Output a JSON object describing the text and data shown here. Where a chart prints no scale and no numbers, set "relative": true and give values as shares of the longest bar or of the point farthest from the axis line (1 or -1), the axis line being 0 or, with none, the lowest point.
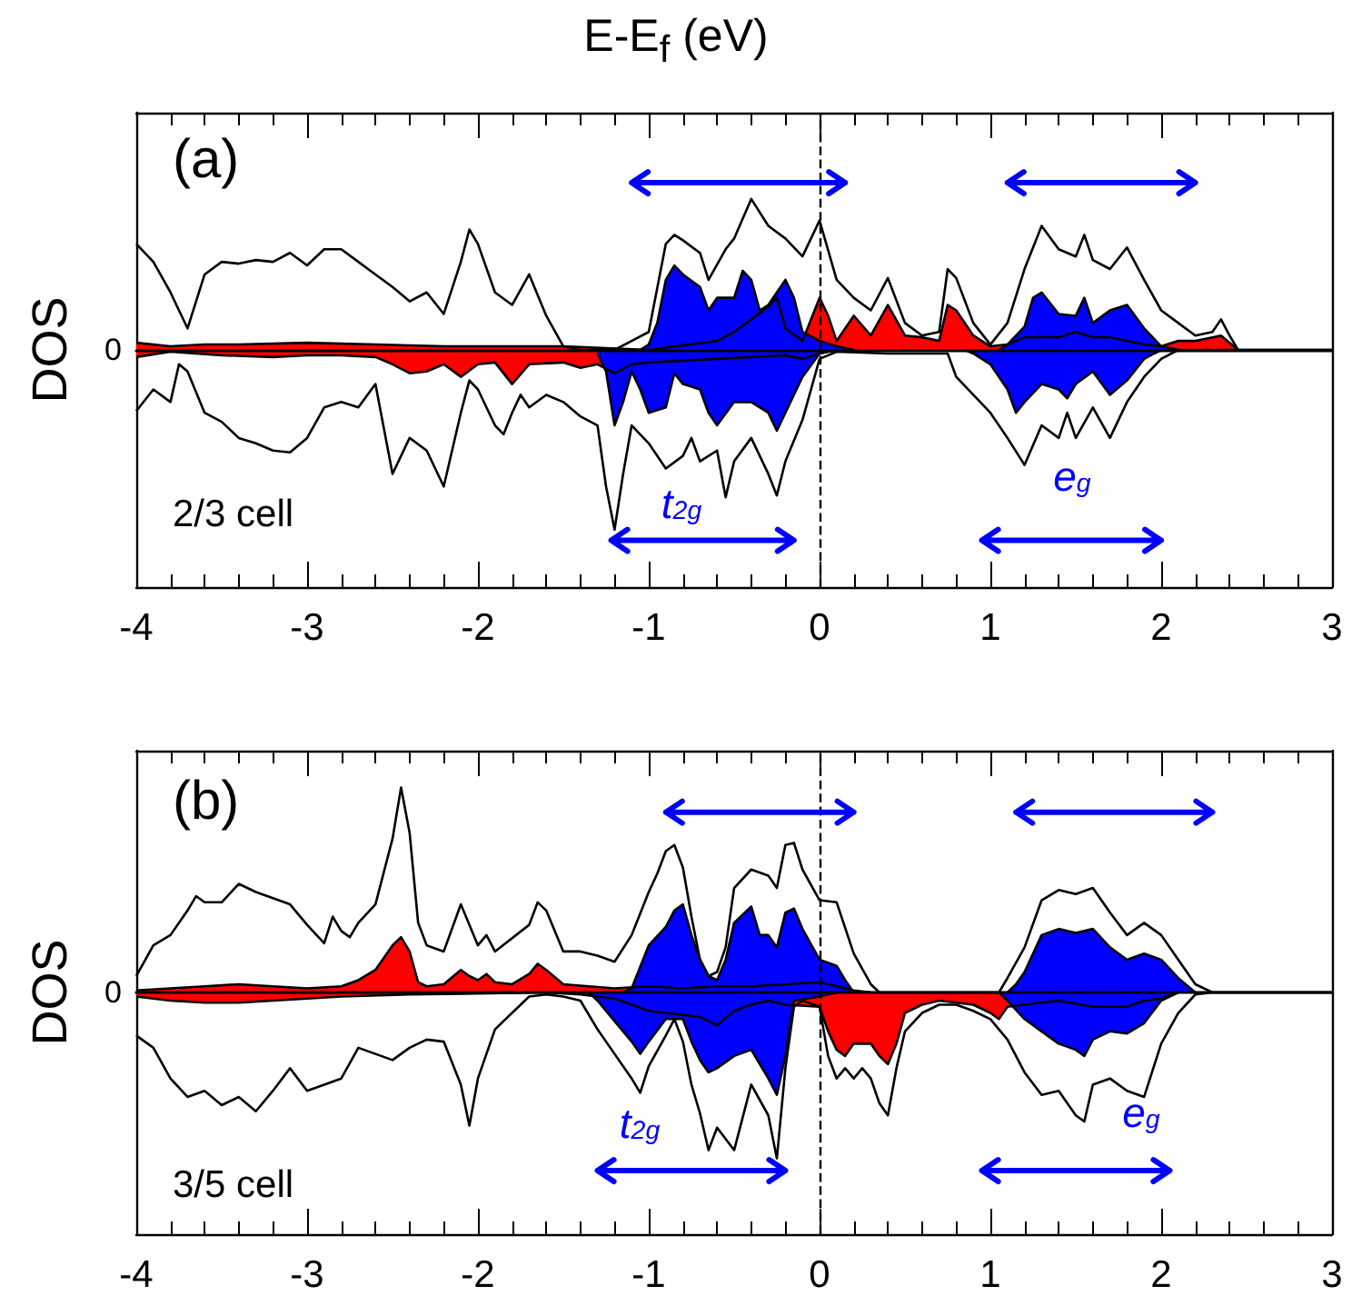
{
  "chart_data": [
    {
      "type": "line",
      "title": "E-E$_{f}$ (eV)",
      "ylabel": "DOS",
      "relative": true,
      "xlim": [
        -4,
        3
      ],
      "xticks": [
        -4,
        -3,
        -2,
        -1,
        0,
        1,
        2,
        3
      ],
      "ref_lines": [
        {
          "axis": "x",
          "value": 0,
          "line_style": "dashed",
          "color": "#000000"
        }
      ],
      "annotations": [
        "(a)",
        "2/3 cell",
        {
          "text": "0",
          "x": -4,
          "y": 0
        },
        "t$_{2g}$",
        "e$_{g}$"
      ],
      "series": [
        {
          "type": "line",
          "color": "#000000",
          "x": [
            -4,
            -3.9,
            -3.8,
            -3.7,
            -3.6,
            -3.5,
            -3.4,
            -3.3,
            -3.2,
            -3.1,
            -3.0,
            -2.9,
            -2.8,
            -2.7,
            -2.6,
            -2.5,
            -2.4,
            -2.3,
            -2.2,
            -2.1,
            -2.05,
            -2.0,
            -1.9,
            -1.8,
            -1.7,
            -1.6,
            -1.5,
            -1.4,
            -1.3,
            -1.2,
            -1.1,
            -1.0,
            -0.9,
            -0.85,
            -0.8,
            -0.7,
            -0.65,
            -0.55,
            -0.5,
            -0.4,
            -0.3,
            -0.2,
            -0.1,
            0,
            0.1,
            0.2,
            0.3,
            0.4,
            0.5,
            0.6,
            0.7,
            0.75,
            0.8,
            0.9,
            1.0,
            1.1,
            1.2,
            1.3,
            1.4,
            1.5,
            1.55,
            1.6,
            1.7,
            1.8,
            1.9,
            2.0,
            2.1,
            2.2,
            2.3,
            2.35,
            2.4,
            2.45,
            3
          ],
          "values": [
            0.59,
            0.49,
            0.32,
            0.12,
            0.42,
            0.49,
            0.48,
            0.5,
            0.49,
            0.54,
            0.47,
            0.56,
            0.56,
            0.49,
            0.42,
            0.35,
            0.27,
            0.32,
            0.2,
            0.49,
            0.67,
            0.59,
            0.32,
            0.25,
            0.42,
            0.19,
            0.02,
            0,
            0,
            0,
            0.05,
            0.1,
            0.59,
            0.64,
            0.61,
            0.54,
            0.39,
            0.56,
            0.62,
            0.84,
            0.69,
            0.62,
            0.52,
            0.72,
            0.39,
            0.29,
            0.22,
            0.4,
            0.15,
            0.08,
            0.1,
            0.45,
            0.4,
            0.15,
            0.03,
            0.15,
            0.45,
            0.69,
            0.56,
            0.52,
            0.64,
            0.5,
            0.45,
            0.57,
            0.39,
            0.22,
            0.15,
            0.08,
            0.1,
            0.17,
            0.08,
            0,
            0
          ]
        },
        {
          "type": "line",
          "color": "#000000",
          "x": [
            -4,
            -3.9,
            -3.8,
            -3.75,
            -3.7,
            -3.6,
            -3.5,
            -3.4,
            -3.3,
            -3.2,
            -3.1,
            -3.0,
            -2.9,
            -2.8,
            -2.7,
            -2.6,
            -2.5,
            -2.4,
            -2.3,
            -2.2,
            -2.1,
            -2.05,
            -2.0,
            -1.9,
            -1.85,
            -1.8,
            -1.75,
            -1.7,
            -1.6,
            -1.5,
            -1.4,
            -1.3,
            -1.25,
            -1.2,
            -1.15,
            -1.1,
            -1.0,
            -0.9,
            -0.8,
            -0.75,
            -0.7,
            -0.6,
            -0.55,
            -0.5,
            -0.4,
            -0.3,
            -0.25,
            -0.2,
            -0.1,
            0,
            0.1,
            0.4,
            0.7,
            0.75,
            0.8,
            0.9,
            1.0,
            1.1,
            1.2,
            1.3,
            1.4,
            1.45,
            1.5,
            1.6,
            1.7,
            1.8,
            1.9,
            2.0,
            2.1,
            3
          ],
          "values": [
            -0.34,
            -0.22,
            -0.29,
            -0.08,
            -0.12,
            -0.35,
            -0.4,
            -0.49,
            -0.52,
            -0.56,
            -0.57,
            -0.49,
            -0.32,
            -0.29,
            -0.32,
            -0.19,
            -0.69,
            -0.49,
            -0.56,
            -0.76,
            -0.35,
            -0.17,
            -0.22,
            -0.42,
            -0.47,
            -0.35,
            -0.25,
            -0.32,
            -0.25,
            -0.29,
            -0.37,
            -0.42,
            -0.76,
            -1.0,
            -0.69,
            -0.42,
            -0.52,
            -0.66,
            -0.59,
            -0.49,
            -0.62,
            -0.56,
            -0.82,
            -0.62,
            -0.49,
            -0.69,
            -0.81,
            -0.62,
            -0.39,
            -0.05,
            -0.01,
            -0.02,
            -0.02,
            -0.02,
            -0.15,
            -0.25,
            -0.35,
            -0.49,
            -0.64,
            -0.42,
            -0.49,
            -0.35,
            -0.49,
            -0.32,
            -0.49,
            -0.29,
            -0.15,
            -0.05,
            0,
            0
          ]
        },
        {
          "type": "area",
          "color": "#0000ff",
          "x": [
            -1.05,
            -1.0,
            -0.95,
            -0.9,
            -0.85,
            -0.8,
            -0.7,
            -0.65,
            -0.6,
            -0.5,
            -0.45,
            -0.4,
            -0.35,
            -0.3,
            -0.2,
            -0.15,
            -0.1,
            0,
            0.1,
            0.2
          ],
          "values": [
            0,
            0.03,
            0.15,
            0.39,
            0.47,
            0.42,
            0.35,
            0.22,
            0.29,
            0.29,
            0.44,
            0.39,
            0.22,
            0.25,
            0.39,
            0.29,
            0.1,
            0.05,
            0.02,
            0
          ]
        },
        {
          "type": "area",
          "color": "#0000ff",
          "x": [
            1.05,
            1.1,
            1.2,
            1.25,
            1.3,
            1.4,
            1.5,
            1.55,
            1.6,
            1.7,
            1.8,
            1.9,
            2.0,
            2.1
          ],
          "values": [
            0,
            0.03,
            0.13,
            0.29,
            0.32,
            0.2,
            0.19,
            0.29,
            0.15,
            0.22,
            0.25,
            0.12,
            0.02,
            0
          ]
        },
        {
          "type": "area",
          "color": "#0000ff",
          "x": [
            -1.3,
            -1.25,
            -1.2,
            -1.15,
            -1.1,
            -1.05,
            -1.0,
            -0.9,
            -0.85,
            -0.8,
            -0.7,
            -0.65,
            -0.6,
            -0.5,
            -0.4,
            -0.3,
            -0.25,
            -0.2,
            -0.1,
            0,
            0.1
          ],
          "values": [
            -0.02,
            -0.12,
            -0.42,
            -0.29,
            -0.12,
            -0.22,
            -0.35,
            -0.32,
            -0.13,
            -0.19,
            -0.22,
            -0.35,
            -0.42,
            -0.29,
            -0.29,
            -0.35,
            -0.45,
            -0.35,
            -0.15,
            -0.02,
            0
          ]
        },
        {
          "type": "area",
          "color": "#0000ff",
          "x": [
            0.85,
            0.9,
            1.0,
            1.1,
            1.15,
            1.2,
            1.3,
            1.4,
            1.45,
            1.5,
            1.6,
            1.7,
            1.8,
            1.9,
            2.0
          ],
          "values": [
            0,
            -0.02,
            -0.08,
            -0.22,
            -0.35,
            -0.29,
            -0.19,
            -0.22,
            -0.27,
            -0.19,
            -0.12,
            -0.25,
            -0.17,
            -0.05,
            0
          ]
        },
        {
          "type": "area",
          "color": "#ff0000",
          "x": [
            -4,
            -3.8,
            -3.5,
            -3.2,
            -3.0,
            -2.8,
            -2.6,
            -2.5,
            -2.4,
            -2.3,
            -2.2,
            -2.1,
            -2.0,
            -1.9,
            -1.8,
            -1.7,
            -1.5,
            -1.4,
            -1.3,
            -1.2,
            -1.1,
            -1.0,
            -0.8,
            -0.6,
            -0.4,
            -0.2,
            -0.1,
            0,
            0.1
          ],
          "values": [
            -0.04,
            -0.01,
            -0.03,
            -0.04,
            -0.03,
            -0.03,
            -0.04,
            -0.08,
            -0.13,
            -0.12,
            -0.08,
            -0.15,
            -0.08,
            -0.07,
            -0.19,
            -0.08,
            -0.07,
            -0.1,
            -0.08,
            -0.13,
            -0.08,
            -0.07,
            -0.06,
            -0.05,
            -0.04,
            -0.03,
            -0.05,
            -0.02,
            0
          ]
        },
        {
          "type": "area",
          "color": "#ff0000",
          "x": [
            -4,
            -3.8,
            -3.6,
            -3.4,
            -3.0,
            -2.6,
            -2.2,
            -1.8,
            -1.5,
            -1.0,
            -0.6,
            -0.5,
            -0.4,
            -0.3,
            -0.25,
            -0.2,
            -0.1,
            0,
            0.05,
            0.1,
            0.2,
            0.3,
            0.4,
            0.5,
            0.6,
            0.7,
            0.75,
            0.8,
            0.9,
            1.0,
            1.1,
            1.2,
            1.4,
            1.5,
            1.6,
            1.7,
            1.8,
            1.9,
            2.0,
            2.1,
            2.2,
            2.3,
            2.35,
            2.45
          ],
          "values": [
            0.04,
            0.02,
            0.03,
            0.03,
            0.04,
            0.03,
            0.02,
            0.02,
            0.02,
            0,
            0.05,
            0.1,
            0.17,
            0.24,
            0.29,
            0.12,
            0.05,
            0.29,
            0.19,
            0.05,
            0.19,
            0.08,
            0.25,
            0.08,
            0.07,
            0.05,
            0.25,
            0.22,
            0.08,
            0.02,
            0.03,
            0.07,
            0.07,
            0.1,
            0.07,
            0.07,
            0.05,
            0.03,
            0.02,
            0.05,
            0.05,
            0.07,
            0.08,
            0
          ]
        }
      ]
    },
    {
      "type": "line",
      "ylabel": "DOS",
      "relative": true,
      "xlim": [
        -4,
        3
      ],
      "xticks": [
        -4,
        -3,
        -2,
        -1,
        0,
        1,
        2,
        3
      ],
      "ref_lines": [
        {
          "axis": "x",
          "value": 0,
          "line_style": "dashed",
          "color": "#000000"
        }
      ],
      "annotations": [
        "(b)",
        "3/5 cell",
        {
          "text": "0",
          "x": -4,
          "y": 0
        },
        "t$_{2g}$",
        "e$_{g}$"
      ],
      "series": [
        {
          "type": "line",
          "color": "#000000",
          "x": [
            -4,
            -3.9,
            -3.8,
            -3.7,
            -3.65,
            -3.6,
            -3.5,
            -3.4,
            -3.3,
            -3.2,
            -3.1,
            -3.0,
            -2.9,
            -2.85,
            -2.8,
            -2.75,
            -2.7,
            -2.6,
            -2.5,
            -2.45,
            -2.4,
            -2.35,
            -2.3,
            -2.2,
            -2.1,
            -2.0,
            -1.95,
            -1.9,
            -1.7,
            -1.65,
            -1.6,
            -1.5,
            -1.4,
            -1.3,
            -1.2,
            -1.1,
            -1.0,
            -0.95,
            -0.9,
            -0.85,
            -0.8,
            -0.75,
            -0.7,
            -0.65,
            -0.6,
            -0.55,
            -0.5,
            -0.4,
            -0.3,
            -0.25,
            -0.2,
            -0.15,
            -0.1,
            0,
            0.1,
            0.2,
            0.3,
            0.35,
            1.05,
            1.1,
            1.2,
            1.3,
            1.4,
            1.5,
            1.6,
            1.7,
            1.8,
            1.9,
            2.0,
            2.1,
            2.2,
            2.3,
            3
          ],
          "values": [
            0.08,
            0.23,
            0.28,
            0.4,
            0.47,
            0.44,
            0.44,
            0.53,
            0.49,
            0.46,
            0.43,
            0.33,
            0.24,
            0.37,
            0.3,
            0.27,
            0.34,
            0.43,
            0.75,
            1.0,
            0.78,
            0.34,
            0.23,
            0.2,
            0.43,
            0.23,
            0.28,
            0.2,
            0.33,
            0.44,
            0.4,
            0.2,
            0.2,
            0.18,
            0.15,
            0.28,
            0.49,
            0.58,
            0.69,
            0.72,
            0.61,
            0.37,
            0.16,
            0.08,
            0.1,
            0.22,
            0.51,
            0.6,
            0.57,
            0.51,
            0.72,
            0.73,
            0.6,
            0.45,
            0.44,
            0.19,
            0.04,
            0,
            0,
            0.07,
            0.22,
            0.45,
            0.5,
            0.48,
            0.51,
            0.39,
            0.28,
            0.34,
            0.28,
            0.16,
            0.04,
            0,
            0
          ]
        },
        {
          "type": "line",
          "color": "#000000",
          "x": [
            -4,
            -3.9,
            -3.8,
            -3.7,
            -3.6,
            -3.5,
            -3.4,
            -3.3,
            -3.2,
            -3.1,
            -3.0,
            -2.9,
            -2.8,
            -2.7,
            -2.6,
            -2.5,
            -2.4,
            -2.3,
            -2.2,
            -2.1,
            -2.05,
            -2.0,
            -1.9,
            -1.8,
            -1.7,
            -1.6,
            -1.5,
            -1.4,
            -1.3,
            -1.2,
            -1.1,
            -1.05,
            -1.0,
            -0.9,
            -0.85,
            -0.8,
            -0.75,
            -0.7,
            -0.65,
            -0.6,
            -0.5,
            -0.4,
            -0.3,
            -0.25,
            -0.2,
            -0.15,
            -0.1,
            0,
            0.05,
            0.1,
            0.15,
            0.2,
            0.25,
            0.3,
            0.35,
            0.4,
            0.45,
            0.5,
            0.6,
            0.7,
            0.8,
            0.9,
            1.0,
            1.1,
            1.2,
            1.3,
            1.4,
            1.5,
            1.55,
            1.6,
            1.7,
            1.8,
            1.9,
            2.0,
            2.1,
            2.2,
            2.3,
            3
          ],
          "values": [
            -0.21,
            -0.27,
            -0.42,
            -0.51,
            -0.48,
            -0.55,
            -0.51,
            -0.58,
            -0.48,
            -0.37,
            -0.48,
            -0.45,
            -0.42,
            -0.27,
            -0.3,
            -0.33,
            -0.27,
            -0.23,
            -0.24,
            -0.45,
            -0.65,
            -0.42,
            -0.18,
            -0.1,
            -0.02,
            -0.01,
            -0.02,
            -0.04,
            -0.18,
            -0.3,
            -0.42,
            -0.49,
            -0.36,
            -0.21,
            -0.13,
            -0.24,
            -0.45,
            -0.59,
            -0.77,
            -0.66,
            -0.77,
            -0.45,
            -0.6,
            -0.81,
            -0.37,
            -0.07,
            -0.04,
            -0.07,
            -0.31,
            -0.42,
            -0.37,
            -0.42,
            -0.37,
            -0.42,
            -0.54,
            -0.6,
            -0.37,
            -0.19,
            -0.1,
            -0.06,
            -0.06,
            -0.09,
            -0.13,
            -0.23,
            -0.39,
            -0.5,
            -0.48,
            -0.6,
            -0.63,
            -0.45,
            -0.42,
            -0.48,
            -0.51,
            -0.25,
            -0.1,
            -0.01,
            0,
            0
          ]
        },
        {
          "type": "area",
          "color": "#0000ff",
          "x": [
            -1.15,
            -1.1,
            -1.0,
            -0.9,
            -0.85,
            -0.8,
            -0.75,
            -0.7,
            -0.65,
            -0.6,
            -0.55,
            -0.5,
            -0.4,
            -0.35,
            -0.3,
            -0.25,
            -0.2,
            -0.15,
            -0.1,
            0,
            0.1,
            0.15,
            0.2
          ],
          "values": [
            0,
            0.02,
            0.23,
            0.32,
            0.4,
            0.43,
            0.28,
            0.16,
            0.08,
            0.06,
            0.16,
            0.34,
            0.42,
            0.28,
            0.28,
            0.22,
            0.39,
            0.41,
            0.31,
            0.16,
            0.13,
            0.06,
            0
          ]
        },
        {
          "type": "area",
          "color": "#0000ff",
          "x": [
            1.1,
            1.15,
            1.2,
            1.3,
            1.4,
            1.5,
            1.6,
            1.7,
            1.8,
            1.9,
            2.0,
            2.1,
            2.2
          ],
          "values": [
            0,
            0.04,
            0.1,
            0.28,
            0.31,
            0.29,
            0.31,
            0.22,
            0.16,
            0.19,
            0.16,
            0.07,
            0
          ]
        },
        {
          "type": "area",
          "color": "#0000ff",
          "x": [
            -1.35,
            -1.3,
            -1.2,
            -1.1,
            -1.05,
            -1.0,
            -0.9,
            -0.8,
            -0.75,
            -0.7,
            -0.65,
            -0.6,
            -0.5,
            -0.4,
            -0.3,
            -0.25,
            -0.2,
            -0.15,
            0,
            0.1
          ],
          "values": [
            0,
            -0.04,
            -0.14,
            -0.24,
            -0.3,
            -0.24,
            -0.13,
            -0.13,
            -0.24,
            -0.33,
            -0.39,
            -0.37,
            -0.31,
            -0.28,
            -0.42,
            -0.5,
            -0.31,
            -0.04,
            -0.02,
            0
          ]
        },
        {
          "type": "area",
          "color": "#0000ff",
          "x": [
            1.05,
            1.1,
            1.2,
            1.3,
            1.4,
            1.5,
            1.55,
            1.6,
            1.7,
            1.8,
            1.9,
            2.0,
            2.1
          ],
          "values": [
            0,
            -0.04,
            -0.13,
            -0.19,
            -0.25,
            -0.28,
            -0.31,
            -0.23,
            -0.19,
            -0.2,
            -0.15,
            -0.04,
            0
          ]
        },
        {
          "type": "area",
          "color": "#ff0000",
          "x": [
            -4,
            -3.8,
            -3.6,
            -3.4,
            -3.2,
            -3.0,
            -2.8,
            -2.7,
            -2.6,
            -2.55,
            -2.5,
            -2.45,
            -2.4,
            -2.35,
            -2.3,
            -2.2,
            -2.1,
            -2.05,
            -2.0,
            -1.95,
            -1.9,
            -1.8,
            -1.7,
            -1.65,
            -1.6,
            -1.5,
            -1.2,
            -1.0,
            -0.8,
            -0.6,
            -0.4,
            -0.2,
            0,
            0.1,
            0.2,
            0.3
          ],
          "values": [
            0.01,
            0.02,
            0.03,
            0.04,
            0.03,
            0.02,
            0.03,
            0.06,
            0.11,
            0.17,
            0.23,
            0.27,
            0.2,
            0.05,
            0.03,
            0.04,
            0.11,
            0.08,
            0.06,
            0.09,
            0.05,
            0.04,
            0.09,
            0.14,
            0.11,
            0.04,
            0.02,
            0.03,
            0.02,
            0.03,
            0.03,
            0.04,
            0.05,
            0.03,
            0.01,
            0
          ]
        },
        {
          "type": "area",
          "color": "#ff0000",
          "x": [
            -4,
            -3.8,
            -3.6,
            -3.4,
            -3.2,
            -3.0,
            -2.8,
            -2.4,
            -1.6,
            -1.4,
            -1.2,
            -1.1,
            -1.0,
            -0.9,
            -0.7,
            -0.6,
            -0.5,
            -0.4,
            -0.3,
            -0.2,
            0,
            0.05,
            0.1,
            0.15,
            0.2,
            0.3,
            0.35,
            0.4,
            0.45,
            0.5,
            0.6,
            0.7,
            0.9,
            1.0,
            1.05,
            1.1,
            1.2,
            1.4,
            1.6,
            1.8,
            1.9,
            2.0,
            2.1
          ],
          "values": [
            -0.02,
            -0.04,
            -0.05,
            -0.05,
            -0.04,
            -0.03,
            -0.02,
            -0.01,
            0,
            -0.01,
            -0.03,
            -0.06,
            -0.09,
            -0.1,
            -0.12,
            -0.16,
            -0.09,
            -0.06,
            -0.04,
            -0.06,
            -0.07,
            -0.19,
            -0.28,
            -0.31,
            -0.25,
            -0.25,
            -0.31,
            -0.35,
            -0.25,
            -0.1,
            -0.06,
            -0.04,
            -0.06,
            -0.1,
            -0.13,
            -0.07,
            -0.06,
            -0.04,
            -0.07,
            -0.07,
            -0.04,
            -0.03,
            0
          ]
        }
      ]
    }
  ]
}
